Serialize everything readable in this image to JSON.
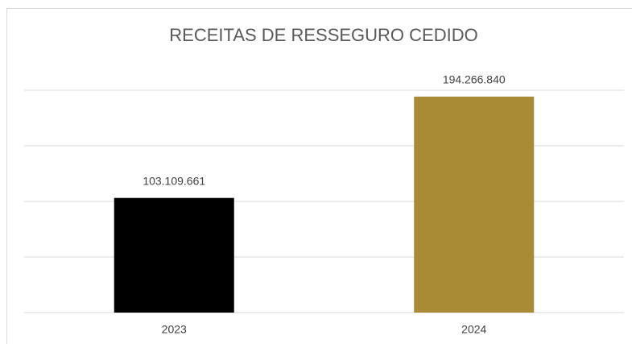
{
  "chart_data": {
    "type": "bar",
    "title": "RECEITAS DE RESSEGURO CEDIDO",
    "categories": [
      "2023",
      "2024"
    ],
    "values": [
      103109661,
      194266840
    ],
    "value_labels": [
      "103.109.661",
      "194.266.840"
    ],
    "colors": [
      "#000000",
      "#a88b34"
    ],
    "ylim": [
      0,
      200000000
    ],
    "yticks": [
      0,
      50000000,
      100000000,
      150000000,
      200000000
    ],
    "grid": true,
    "show_tick_labels": false
  }
}
